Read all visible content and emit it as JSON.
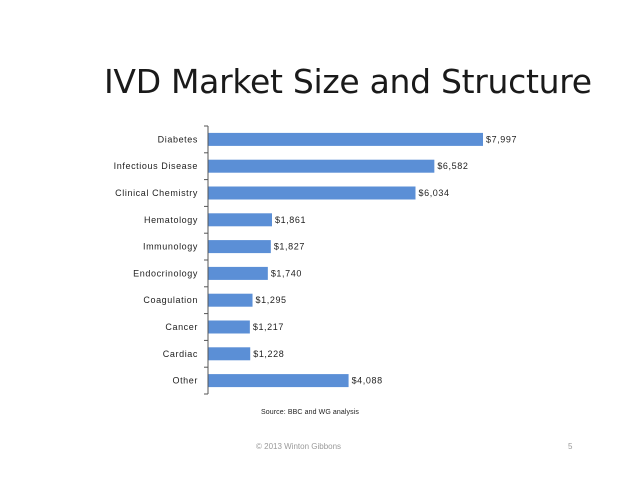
{
  "slide": {
    "title": "IVD Market Size and Structure",
    "source": "Source: BBC and WG analysis",
    "footer": "© 2013 Winton Gibbons",
    "page_number": "5"
  },
  "chart_data": {
    "type": "bar",
    "orientation": "horizontal",
    "title": "",
    "xlabel": "",
    "ylabel": "",
    "categories": [
      "Diabetes",
      "Infectious Disease",
      "Clinical Chemistry",
      "Hematology",
      "Immunology",
      "Endocrinology",
      "Coagulation",
      "Cancer",
      "Cardiac",
      "Other"
    ],
    "values": [
      7997,
      6582,
      6034,
      1861,
      1827,
      1740,
      1295,
      1217,
      1228,
      4088
    ],
    "value_labels": [
      "$7,997",
      "$6,582",
      "$6,034",
      "$1,861",
      "$1,827",
      "$1,740",
      "$1,295",
      "$1,217",
      "$1,228",
      "$4,088"
    ],
    "bar_color": "#5b8fd6",
    "grid": false,
    "legend": "none"
  }
}
